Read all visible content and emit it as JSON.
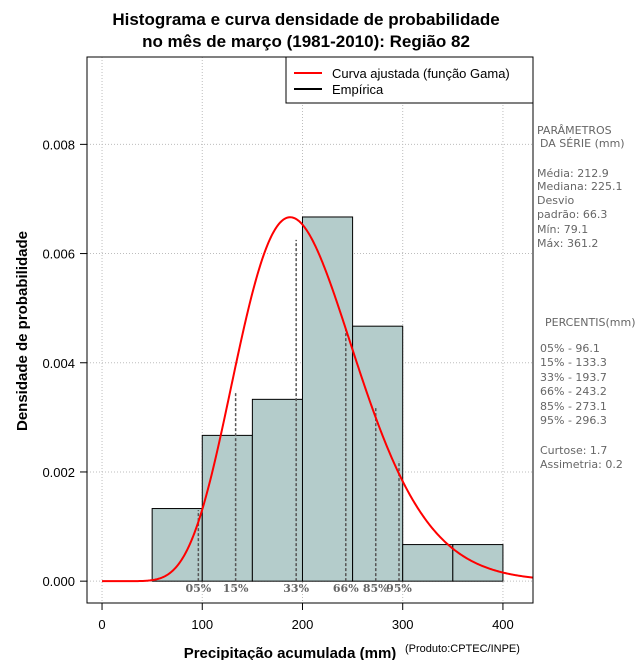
{
  "chart_data": {
    "type": "histogram",
    "title_lines": [
      "Histograma e curva densidade de probabilidade",
      "no mês de março (1981-2010): Região 82"
    ],
    "xlabel": "Precipitação acumulada (mm)",
    "ylabel": "Densidade de probabilidade",
    "credit": "(Produto:CPTEC/INPE)",
    "xlim": [
      -15,
      430
    ],
    "ylim": [
      -0.0004,
      0.0096
    ],
    "x_ticks": [
      0,
      100,
      200,
      300,
      400
    ],
    "x_tick_labels": [
      "0",
      "100",
      "200",
      "300",
      "400"
    ],
    "y_ticks": [
      0.0,
      0.002,
      0.004,
      0.006,
      0.008
    ],
    "y_tick_labels": [
      "0.000",
      "0.002",
      "0.004",
      "0.006",
      "0.008"
    ],
    "grid": true,
    "bins": [
      {
        "start": 50,
        "end": 100,
        "density": 0.00133
      },
      {
        "start": 100,
        "end": 150,
        "density": 0.00267
      },
      {
        "start": 150,
        "end": 200,
        "density": 0.00333
      },
      {
        "start": 200,
        "end": 250,
        "density": 0.00667
      },
      {
        "start": 250,
        "end": 300,
        "density": 0.00467
      },
      {
        "start": 300,
        "end": 350,
        "density": 0.00067
      },
      {
        "start": 350,
        "end": 400,
        "density": 0.00067
      }
    ],
    "bar_color": "#b4cccb",
    "curve": {
      "name": "Curva ajustada (função Gama)",
      "color": "#ff0000",
      "distribution": "gamma",
      "shape": 11.0,
      "scale": 18.77,
      "x_range": [
        0,
        430
      ]
    },
    "percentiles": [
      {
        "label": "05%",
        "value": 96.1,
        "density": 0.0013
      },
      {
        "label": "15%",
        "value": 133.3,
        "density": 0.00345
      },
      {
        "label": "33%",
        "value": 193.7,
        "density": 0.00625
      },
      {
        "label": "66%",
        "value": 243.2,
        "density": 0.0046
      },
      {
        "label": "85%",
        "value": 273.1,
        "density": 0.0032
      },
      {
        "label": "95%",
        "value": 296.3,
        "density": 0.0022
      }
    ],
    "legend": {
      "position": "top-right",
      "entries": [
        {
          "label": "Curva ajustada (função Gama)",
          "color": "#ff0000"
        },
        {
          "label": "Empírica",
          "color": "#000000"
        }
      ]
    },
    "side_panel": {
      "params_title_1": "PARÂMETROS",
      "params_title_2": "DA SÉRIE (mm)",
      "params_lines": [
        "Média:  212.9",
        "Mediana:  225.1",
        "Desvio",
        "padrão:  66.3",
        "Mín:  79.1",
        "Máx:  361.2"
      ],
      "percentis_title": "PERCENTIS(mm)",
      "percentis_lines": [
        "05% -  96.1",
        "15% -  133.3",
        "33% -  193.7",
        "66% -  243.2",
        "85% -  273.1",
        "95% -  296.3"
      ],
      "extra_lines": [
        "Curtose:  1.7",
        "Assimetria:  0.2"
      ]
    }
  }
}
